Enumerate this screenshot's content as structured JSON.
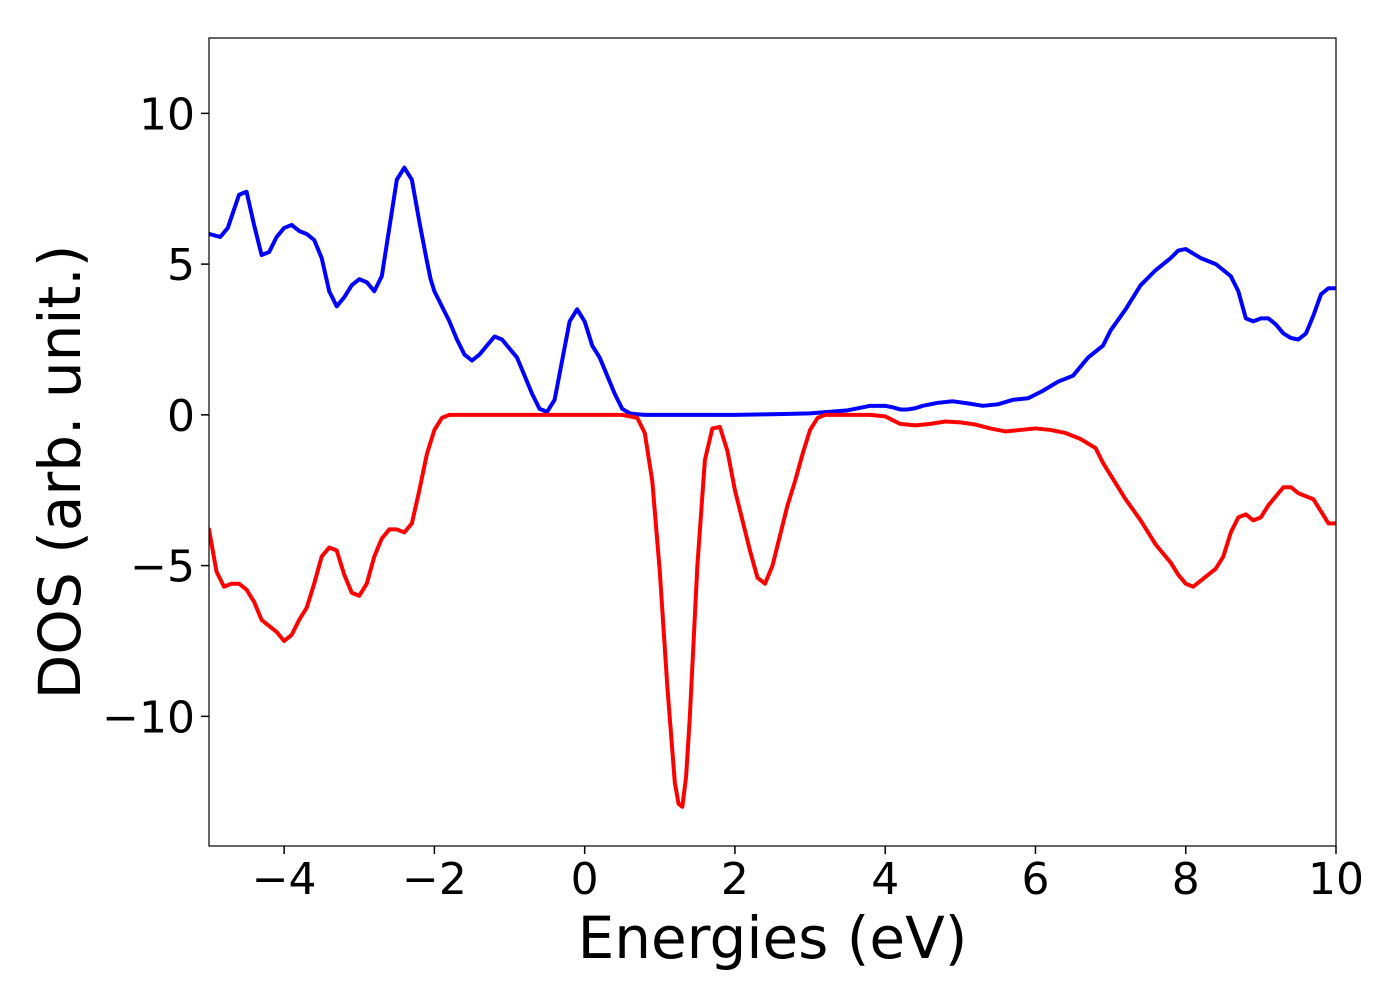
{
  "chart_data": {
    "type": "line",
    "xlabel": "Energies (eV)",
    "ylabel": "DOS (arb. unit.)",
    "xlim": [
      -5,
      10
    ],
    "ylim": [
      -14.3,
      12.5
    ],
    "xticks": [
      -4,
      -2,
      0,
      2,
      4,
      6,
      8,
      10
    ],
    "xtick_labels": [
      "−4",
      "−2",
      "0",
      "2",
      "4",
      "6",
      "8",
      "10"
    ],
    "yticks": [
      10,
      5,
      0,
      -5,
      -10
    ],
    "ytick_labels": [
      "10",
      "5",
      "0",
      "−5",
      "−10"
    ],
    "grid": false,
    "series": [
      {
        "color": "#0000ff",
        "x": [
          -5.0,
          -4.85,
          -4.75,
          -4.6,
          -4.5,
          -4.4,
          -4.3,
          -4.2,
          -4.1,
          -4.0,
          -3.9,
          -3.8,
          -3.7,
          -3.6,
          -3.5,
          -3.4,
          -3.3,
          -3.2,
          -3.1,
          -3.0,
          -2.9,
          -2.8,
          -2.7,
          -2.6,
          -2.5,
          -2.4,
          -2.3,
          -2.2,
          -2.1,
          -2.05,
          -2.0,
          -1.9,
          -1.8,
          -1.7,
          -1.6,
          -1.5,
          -1.4,
          -1.3,
          -1.2,
          -1.1,
          -1.0,
          -0.9,
          -0.8,
          -0.7,
          -0.6,
          -0.5,
          -0.4,
          -0.3,
          -0.2,
          -0.1,
          0.0,
          0.1,
          0.2,
          0.3,
          0.4,
          0.5,
          0.6,
          0.7,
          0.8,
          0.9,
          1.0,
          1.1,
          1.2,
          1.3,
          1.5,
          2.0,
          2.5,
          3.0,
          3.5,
          3.8,
          4.0,
          4.1,
          4.2,
          4.3,
          4.4,
          4.5,
          4.7,
          4.9,
          5.1,
          5.3,
          5.5,
          5.7,
          5.9,
          6.1,
          6.3,
          6.5,
          6.7,
          6.9,
          7.0,
          7.2,
          7.4,
          7.6,
          7.8,
          7.9,
          8.0,
          8.1,
          8.2,
          8.4,
          8.6,
          8.7,
          8.8,
          8.9,
          9.0,
          9.1,
          9.2,
          9.3,
          9.4,
          9.5,
          9.6,
          9.7,
          9.8,
          9.9,
          10.0
        ],
        "y": [
          6.0,
          5.9,
          6.2,
          7.3,
          7.4,
          6.3,
          5.3,
          5.4,
          5.9,
          6.2,
          6.3,
          6.1,
          6.0,
          5.8,
          5.2,
          4.1,
          3.6,
          3.9,
          4.3,
          4.5,
          4.4,
          4.1,
          4.6,
          6.2,
          7.8,
          8.2,
          7.8,
          6.4,
          5.1,
          4.5,
          4.1,
          3.6,
          3.1,
          2.5,
          2.0,
          1.8,
          2.0,
          2.3,
          2.6,
          2.5,
          2.2,
          1.9,
          1.3,
          0.7,
          0.2,
          0.1,
          0.5,
          1.8,
          3.1,
          3.5,
          3.1,
          2.3,
          1.9,
          1.3,
          0.7,
          0.2,
          0.05,
          0.02,
          0.0,
          0.0,
          0.0,
          0.0,
          0.0,
          0.0,
          0.0,
          0.0,
          0.02,
          0.05,
          0.15,
          0.3,
          0.3,
          0.25,
          0.18,
          0.18,
          0.22,
          0.3,
          0.4,
          0.45,
          0.38,
          0.3,
          0.35,
          0.5,
          0.55,
          0.8,
          1.1,
          1.3,
          1.9,
          2.3,
          2.8,
          3.5,
          4.3,
          4.8,
          5.2,
          5.45,
          5.5,
          5.35,
          5.2,
          5.0,
          4.6,
          4.1,
          3.2,
          3.1,
          3.2,
          3.2,
          3.0,
          2.7,
          2.55,
          2.5,
          2.7,
          3.3,
          4.0,
          4.2,
          4.2
        ]
      },
      {
        "color": "#ff0000",
        "x": [
          -5.0,
          -4.9,
          -4.8,
          -4.7,
          -4.6,
          -4.5,
          -4.4,
          -4.3,
          -4.2,
          -4.1,
          -4.0,
          -3.9,
          -3.8,
          -3.7,
          -3.6,
          -3.5,
          -3.4,
          -3.3,
          -3.2,
          -3.1,
          -3.0,
          -2.9,
          -2.8,
          -2.7,
          -2.6,
          -2.5,
          -2.4,
          -2.3,
          -2.2,
          -2.1,
          -2.0,
          -1.9,
          -1.8,
          -1.7,
          -1.6,
          -1.5,
          -1.0,
          0.0,
          0.5,
          0.7,
          0.8,
          0.9,
          1.0,
          1.1,
          1.2,
          1.25,
          1.3,
          1.35,
          1.4,
          1.5,
          1.6,
          1.7,
          1.8,
          1.9,
          2.0,
          2.1,
          2.2,
          2.3,
          2.4,
          2.5,
          2.6,
          2.7,
          2.8,
          2.9,
          3.0,
          3.1,
          3.2,
          3.3,
          3.4,
          3.6,
          3.8,
          4.0,
          4.2,
          4.4,
          4.6,
          4.8,
          5.0,
          5.2,
          5.4,
          5.6,
          5.8,
          6.0,
          6.2,
          6.4,
          6.6,
          6.8,
          6.9,
          7.0,
          7.1,
          7.2,
          7.4,
          7.6,
          7.8,
          7.9,
          8.0,
          8.1,
          8.2,
          8.3,
          8.4,
          8.5,
          8.6,
          8.7,
          8.8,
          8.9,
          9.0,
          9.1,
          9.2,
          9.3,
          9.4,
          9.5,
          9.6,
          9.7,
          9.8,
          9.9,
          10.0
        ],
        "y": [
          -3.8,
          -5.2,
          -5.7,
          -5.6,
          -5.6,
          -5.8,
          -6.2,
          -6.8,
          -7.0,
          -7.2,
          -7.5,
          -7.3,
          -6.8,
          -6.4,
          -5.6,
          -4.7,
          -4.4,
          -4.5,
          -5.3,
          -5.9,
          -6.0,
          -5.6,
          -4.7,
          -4.1,
          -3.8,
          -3.8,
          -3.9,
          -3.6,
          -2.5,
          -1.3,
          -0.5,
          -0.1,
          0.0,
          0.0,
          0.0,
          0.0,
          0.0,
          0.0,
          0.0,
          -0.1,
          -0.6,
          -2.2,
          -5.2,
          -9.0,
          -12.2,
          -12.9,
          -13.0,
          -12.0,
          -10.0,
          -5.0,
          -1.5,
          -0.45,
          -0.4,
          -1.2,
          -2.5,
          -3.5,
          -4.5,
          -5.4,
          -5.6,
          -5.0,
          -4.0,
          -3.0,
          -2.2,
          -1.3,
          -0.5,
          -0.1,
          0.0,
          0.0,
          0.0,
          0.0,
          0.0,
          -0.05,
          -0.3,
          -0.35,
          -0.3,
          -0.22,
          -0.25,
          -0.32,
          -0.45,
          -0.55,
          -0.5,
          -0.45,
          -0.5,
          -0.6,
          -0.8,
          -1.1,
          -1.6,
          -2.0,
          -2.4,
          -2.8,
          -3.5,
          -4.3,
          -4.9,
          -5.3,
          -5.6,
          -5.7,
          -5.5,
          -5.3,
          -5.1,
          -4.7,
          -3.9,
          -3.4,
          -3.3,
          -3.5,
          -3.4,
          -3.0,
          -2.7,
          -2.4,
          -2.4,
          -2.6,
          -2.7,
          -2.8,
          -3.2,
          -3.6,
          -3.6
        ]
      }
    ]
  }
}
